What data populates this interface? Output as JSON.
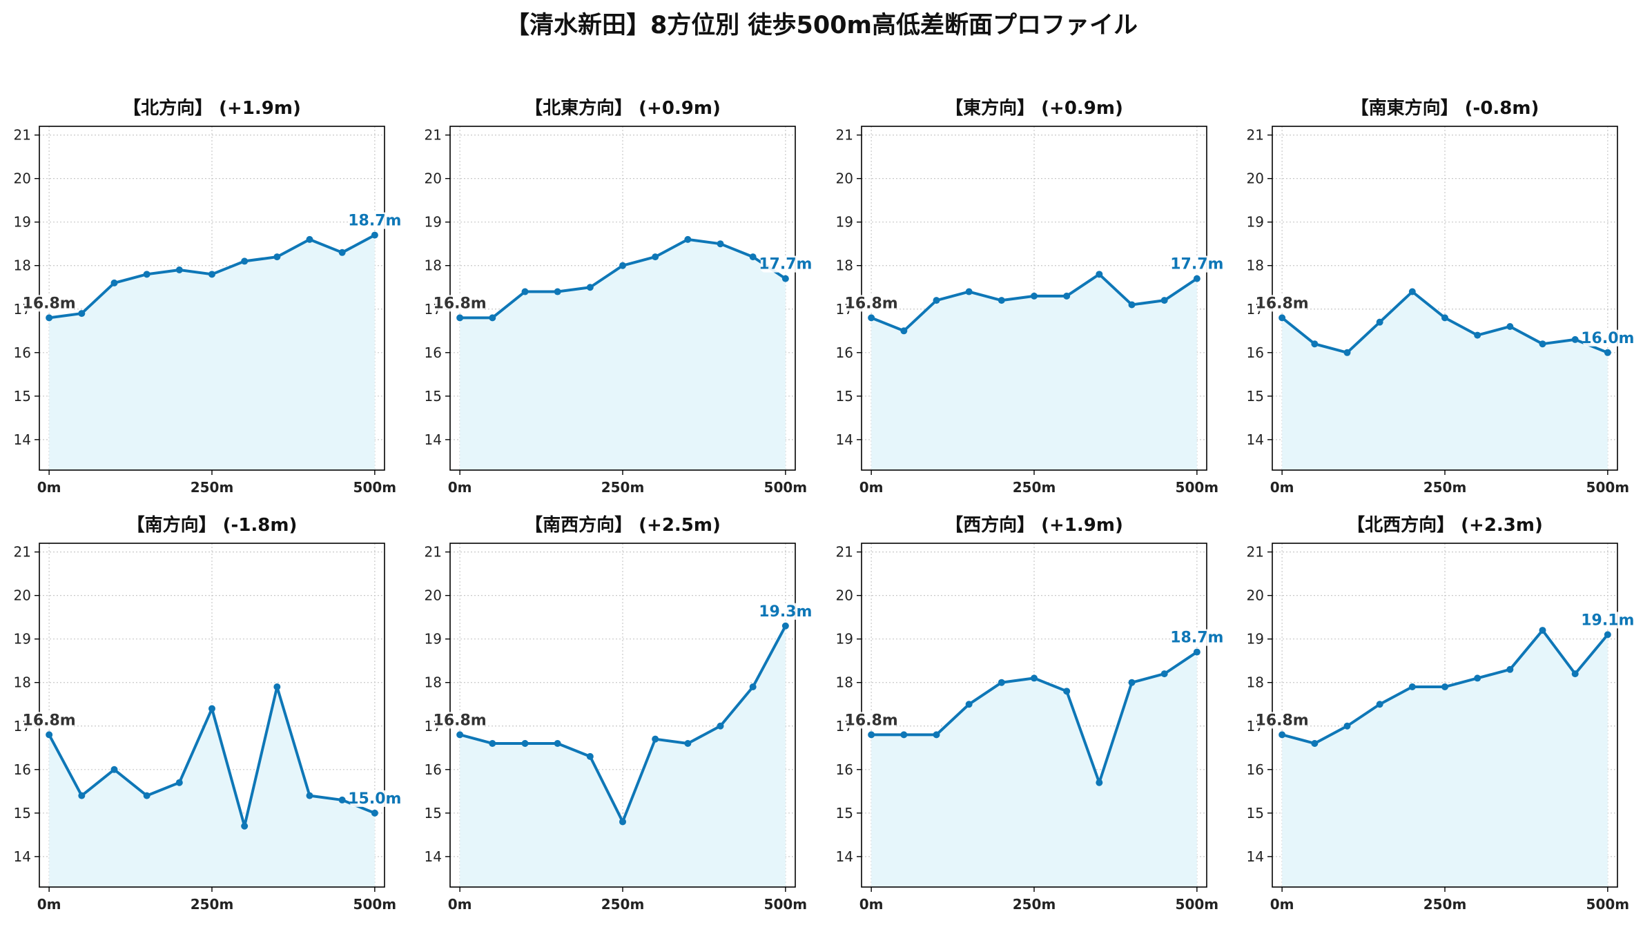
{
  "figure": {
    "title": "【清水新田】8方位別 徒歩500m高低差断面プロファイル"
  },
  "style": {
    "line_color": "#0e77b7",
    "fill_color": "#e6f6fb",
    "start_label_color": "#333333",
    "end_label_color": "#0e77b7",
    "grid_color": "#c8c8c8"
  },
  "chart_data": [
    {
      "type": "area",
      "title": "【北方向】 (+1.9m)",
      "x": [
        0,
        50,
        100,
        150,
        200,
        250,
        300,
        350,
        400,
        450,
        500
      ],
      "values": [
        16.8,
        16.9,
        17.6,
        17.8,
        17.9,
        17.8,
        18.1,
        18.2,
        18.6,
        18.3,
        18.7
      ],
      "start_label": "16.8m",
      "end_label": "18.7m",
      "xticks": [
        0,
        250,
        500
      ],
      "xtick_labels": [
        "0m",
        "250m",
        "500m"
      ],
      "yticks": [
        14,
        15,
        16,
        17,
        18,
        19,
        20,
        21
      ],
      "ylim": [
        13.3,
        21.2
      ],
      "xlim": [
        -15,
        515
      ],
      "grid": true
    },
    {
      "type": "area",
      "title": "【北東方向】 (+0.9m)",
      "x": [
        0,
        50,
        100,
        150,
        200,
        250,
        300,
        350,
        400,
        450,
        500
      ],
      "values": [
        16.8,
        16.8,
        17.4,
        17.4,
        17.5,
        18.0,
        18.2,
        18.6,
        18.5,
        18.2,
        17.7
      ],
      "start_label": "16.8m",
      "end_label": "17.7m",
      "xticks": [
        0,
        250,
        500
      ],
      "xtick_labels": [
        "0m",
        "250m",
        "500m"
      ],
      "yticks": [
        14,
        15,
        16,
        17,
        18,
        19,
        20,
        21
      ],
      "ylim": [
        13.3,
        21.2
      ],
      "xlim": [
        -15,
        515
      ],
      "grid": true
    },
    {
      "type": "area",
      "title": "【東方向】 (+0.9m)",
      "x": [
        0,
        50,
        100,
        150,
        200,
        250,
        300,
        350,
        400,
        450,
        500
      ],
      "values": [
        16.8,
        16.5,
        17.2,
        17.4,
        17.2,
        17.3,
        17.3,
        17.8,
        17.1,
        17.2,
        17.7
      ],
      "start_label": "16.8m",
      "end_label": "17.7m",
      "xticks": [
        0,
        250,
        500
      ],
      "xtick_labels": [
        "0m",
        "250m",
        "500m"
      ],
      "yticks": [
        14,
        15,
        16,
        17,
        18,
        19,
        20,
        21
      ],
      "ylim": [
        13.3,
        21.2
      ],
      "xlim": [
        -15,
        515
      ],
      "grid": true
    },
    {
      "type": "area",
      "title": "【南東方向】 (-0.8m)",
      "x": [
        0,
        50,
        100,
        150,
        200,
        250,
        300,
        350,
        400,
        450,
        500
      ],
      "values": [
        16.8,
        16.2,
        16.0,
        16.7,
        17.4,
        16.8,
        16.4,
        16.6,
        16.2,
        16.3,
        16.0
      ],
      "start_label": "16.8m",
      "end_label": "16.0m",
      "xticks": [
        0,
        250,
        500
      ],
      "xtick_labels": [
        "0m",
        "250m",
        "500m"
      ],
      "yticks": [
        14,
        15,
        16,
        17,
        18,
        19,
        20,
        21
      ],
      "ylim": [
        13.3,
        21.2
      ],
      "xlim": [
        -15,
        515
      ],
      "grid": true
    },
    {
      "type": "area",
      "title": "【南方向】 (-1.8m)",
      "x": [
        0,
        50,
        100,
        150,
        200,
        250,
        300,
        350,
        400,
        450,
        500
      ],
      "values": [
        16.8,
        15.4,
        16.0,
        15.4,
        15.7,
        17.4,
        14.7,
        17.9,
        15.4,
        15.3,
        15.0
      ],
      "start_label": "16.8m",
      "end_label": "15.0m",
      "xticks": [
        0,
        250,
        500
      ],
      "xtick_labels": [
        "0m",
        "250m",
        "500m"
      ],
      "yticks": [
        14,
        15,
        16,
        17,
        18,
        19,
        20,
        21
      ],
      "ylim": [
        13.3,
        21.2
      ],
      "xlim": [
        -15,
        515
      ],
      "grid": true
    },
    {
      "type": "area",
      "title": "【南西方向】 (+2.5m)",
      "x": [
        0,
        50,
        100,
        150,
        200,
        250,
        300,
        350,
        400,
        450,
        500
      ],
      "values": [
        16.8,
        16.6,
        16.6,
        16.6,
        16.3,
        14.8,
        16.7,
        16.6,
        17.0,
        17.9,
        19.3
      ],
      "start_label": "16.8m",
      "end_label": "19.3m",
      "xticks": [
        0,
        250,
        500
      ],
      "xtick_labels": [
        "0m",
        "250m",
        "500m"
      ],
      "yticks": [
        14,
        15,
        16,
        17,
        18,
        19,
        20,
        21
      ],
      "ylim": [
        13.3,
        21.2
      ],
      "xlim": [
        -15,
        515
      ],
      "grid": true
    },
    {
      "type": "area",
      "title": "【西方向】 (+1.9m)",
      "x": [
        0,
        50,
        100,
        150,
        200,
        250,
        300,
        350,
        400,
        450,
        500
      ],
      "values": [
        16.8,
        16.8,
        16.8,
        17.5,
        18.0,
        18.1,
        17.8,
        15.7,
        18.0,
        18.2,
        18.7
      ],
      "start_label": "16.8m",
      "end_label": "18.7m",
      "xticks": [
        0,
        250,
        500
      ],
      "xtick_labels": [
        "0m",
        "250m",
        "500m"
      ],
      "yticks": [
        14,
        15,
        16,
        17,
        18,
        19,
        20,
        21
      ],
      "ylim": [
        13.3,
        21.2
      ],
      "xlim": [
        -15,
        515
      ],
      "grid": true
    },
    {
      "type": "area",
      "title": "【北西方向】 (+2.3m)",
      "x": [
        0,
        50,
        100,
        150,
        200,
        250,
        300,
        350,
        400,
        450,
        500
      ],
      "values": [
        16.8,
        16.6,
        17.0,
        17.5,
        17.9,
        17.9,
        18.1,
        18.3,
        19.2,
        18.2,
        19.1
      ],
      "start_label": "16.8m",
      "end_label": "19.1m",
      "xticks": [
        0,
        250,
        500
      ],
      "xtick_labels": [
        "0m",
        "250m",
        "500m"
      ],
      "yticks": [
        14,
        15,
        16,
        17,
        18,
        19,
        20,
        21
      ],
      "ylim": [
        13.3,
        21.2
      ],
      "xlim": [
        -15,
        515
      ],
      "grid": true
    }
  ]
}
